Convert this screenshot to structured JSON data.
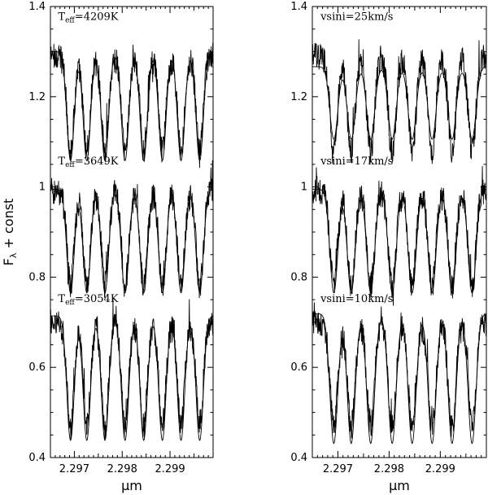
{
  "chart_data": [
    {
      "type": "line",
      "panel": "left",
      "xlabel": "μm",
      "ylabel": "F_λ + const",
      "xlim": [
        2.2965,
        2.2999
      ],
      "ylim": [
        0.4,
        1.4
      ],
      "x_ticks": [
        2.297,
        2.298,
        2.299
      ],
      "x_tick_labels": [
        "2.297",
        "2.298",
        "2.299"
      ],
      "y_ticks": [
        0.4,
        0.6,
        0.8,
        1.0,
        1.2,
        1.4
      ],
      "y_tick_labels": [
        "0.4",
        "0.6",
        "0.8",
        "1",
        "1.2",
        "1.4"
      ],
      "annotations": [
        {
          "text_main": "T",
          "text_sub": "eff",
          "text_tail": "=4209K",
          "x": 2.29666,
          "y": 1.37
        },
        {
          "text_main": "T",
          "text_sub": "eff",
          "text_tail": "=3649K",
          "x": 2.29666,
          "y": 1.05
        },
        {
          "text_main": "T",
          "text_sub": "eff",
          "text_tail": "=3054K",
          "x": 2.29666,
          "y": 0.745
        }
      ],
      "stacks": [
        {
          "offset": 1.2,
          "amplitude": 0.1,
          "model_amplitude": 0.105
        },
        {
          "offset": 0.9,
          "amplitude": 0.1,
          "model_amplitude": 0.1
        },
        {
          "offset": 0.6,
          "amplitude": 0.11,
          "model_amplitude": 0.12
        }
      ]
    },
    {
      "type": "line",
      "panel": "right",
      "xlabel": "μm",
      "ylabel": "",
      "xlim": [
        2.2965,
        2.2999
      ],
      "ylim": [
        0.4,
        1.4
      ],
      "x_ticks": [
        2.297,
        2.298,
        2.299
      ],
      "x_tick_labels": [
        "2.297",
        "2.298",
        "2.299"
      ],
      "y_ticks": [
        0.4,
        0.6,
        0.8,
        1.0,
        1.2,
        1.4
      ],
      "y_tick_labels": [
        "0.4",
        "0.6",
        "0.8",
        "1",
        "1.2",
        "1.4"
      ],
      "annotations": [
        {
          "text_main": "vsini=25km/s",
          "text_sub": "",
          "text_tail": "",
          "x": 2.29666,
          "y": 1.37
        },
        {
          "text_main": "vsini=17km/s",
          "text_sub": "",
          "text_tail": "",
          "x": 2.29666,
          "y": 1.05
        },
        {
          "text_main": "vsini=10km/s",
          "text_sub": "",
          "text_tail": "",
          "x": 2.29666,
          "y": 0.745
        }
      ],
      "stacks": [
        {
          "offset": 1.2,
          "amplitude": 0.1,
          "model_amplitude": 0.07
        },
        {
          "offset": 0.9,
          "amplitude": 0.1,
          "model_amplitude": 0.1
        },
        {
          "offset": 0.6,
          "amplitude": 0.11,
          "model_amplitude": 0.125
        }
      ]
    }
  ]
}
